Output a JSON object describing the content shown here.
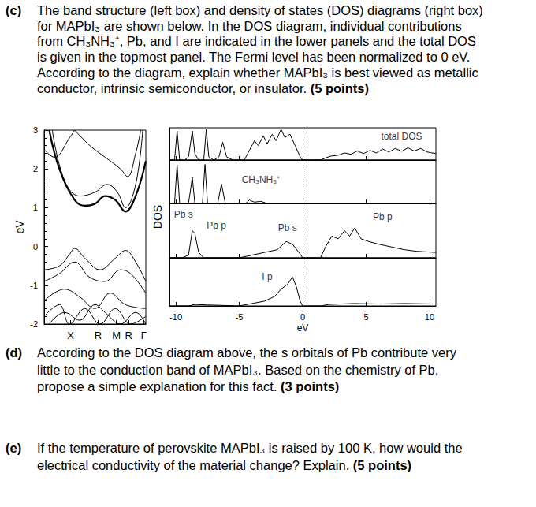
{
  "document": {
    "questions": [
      {
        "label": "(c)",
        "lines": [
          "The band structure (left box) and density of states (DOS) diagrams (right box)",
          "for MAPbI₃ are shown below. In the DOS diagram, individual contributions",
          "from CH₃NH₃⁺, Pb, and I are indicated in the lower panels and the total DOS",
          "is given in the topmost panel. The Fermi level has been normalized to 0 eV.",
          "According to the diagram, explain whether MAPbI₃ is best viewed as metallic",
          "conductor, intrinsic semiconductor, or insulator."
        ],
        "points": "(5 points)"
      },
      {
        "label": "(d)",
        "lines": [
          "According to the DOS diagram above, the s orbitals of Pb contribute very",
          "little to the conduction band of MAPbI₃. Based on the chemistry of Pb,",
          "propose a simple explanation for this fact."
        ],
        "points": "(3 points)"
      },
      {
        "label": "(e)",
        "lines": [
          "If the temperature of perovskite MAPbI₃ is raised by 100 K, how would the",
          "electrical conductivity of the material change? Explain."
        ],
        "points": "(5 points)"
      }
    ]
  },
  "chart_data": [
    {
      "type": "line",
      "ylabel": "eV",
      "grid": false,
      "xlim": [
        0,
        1
      ],
      "xticks": [
        {
          "value": 0.26,
          "label": "X"
        },
        {
          "value": 0.53,
          "label": "R"
        },
        {
          "value": 0.71,
          "label": "M"
        },
        {
          "value": 0.83,
          "label": "R"
        },
        {
          "value": 0.98,
          "label": "Γ"
        }
      ],
      "ylim": [
        -2,
        3
      ],
      "yticks": [
        -2,
        -1,
        0,
        1,
        2,
        3
      ],
      "series": [
        {
          "color": "#000000",
          "line_style": "bold",
          "values": [
            [
              0.05,
              3
            ],
            [
              0.15,
              2.0
            ],
            [
              0.3,
              1.2
            ],
            [
              0.4,
              1.05
            ],
            [
              0.5,
              1.1
            ],
            [
              0.6,
              1.3
            ],
            [
              0.7,
              1.2
            ],
            [
              0.8,
              0.9
            ],
            [
              0.9,
              1.3
            ],
            [
              1.0,
              2.2
            ]
          ]
        },
        {
          "color": "#000000",
          "line_style": "solid",
          "values": [
            [
              0.08,
              3
            ],
            [
              0.2,
              1.7
            ],
            [
              0.35,
              1.3
            ],
            [
              0.5,
              1.4
            ],
            [
              0.62,
              1.6
            ],
            [
              0.72,
              1.4
            ],
            [
              0.8,
              1.0
            ],
            [
              0.9,
              1.6
            ],
            [
              0.97,
              3
            ]
          ]
        },
        {
          "color": "#000000",
          "line_style": "solid",
          "values": [
            [
              0.3,
              3
            ],
            [
              0.45,
              2.6
            ],
            [
              0.6,
              2.3
            ],
            [
              0.75,
              2.0
            ],
            [
              0.82,
              1.8
            ],
            [
              0.9,
              2.4
            ],
            [
              0.95,
              3
            ]
          ]
        },
        {
          "color": "#000000",
          "line_style": "solid",
          "values": [
            [
              0.0,
              2.5
            ],
            [
              0.1,
              2.3
            ],
            [
              0.25,
              2.8
            ],
            [
              0.3,
              3
            ]
          ]
        },
        {
          "color": "#000000",
          "line_style": "solid",
          "values": [
            [
              0,
              -0.6
            ],
            [
              0.15,
              -0.5
            ],
            [
              0.25,
              -0.2
            ],
            [
              0.3,
              -0.05
            ],
            [
              0.4,
              -0.3
            ],
            [
              0.55,
              -0.6
            ],
            [
              0.7,
              -0.3
            ],
            [
              0.8,
              -0.1
            ],
            [
              0.9,
              -0.4
            ],
            [
              1,
              -0.9
            ]
          ]
        },
        {
          "color": "#000000",
          "line_style": "solid",
          "values": [
            [
              0,
              -0.9
            ],
            [
              0.15,
              -0.7
            ],
            [
              0.3,
              -0.4
            ],
            [
              0.45,
              -0.8
            ],
            [
              0.6,
              -0.9
            ],
            [
              0.75,
              -0.6
            ],
            [
              0.85,
              -0.7
            ],
            [
              1,
              -1.2
            ]
          ]
        },
        {
          "color": "#000000",
          "line_style": "solid",
          "values": [
            [
              0,
              -1.4
            ],
            [
              0.2,
              -1.1
            ],
            [
              0.35,
              -1.3
            ],
            [
              0.5,
              -1.6
            ],
            [
              0.65,
              -1.2
            ],
            [
              0.8,
              -1.5
            ],
            [
              1,
              -1.6
            ]
          ]
        },
        {
          "color": "#000000",
          "line_style": "solid",
          "values": [
            [
              0,
              -1.8
            ],
            [
              0.15,
              -1.5
            ],
            [
              0.25,
              -2
            ],
            [
              0.4,
              -1.6
            ],
            [
              0.55,
              -2
            ],
            [
              0.7,
              -1.6
            ],
            [
              0.85,
              -2
            ],
            [
              1,
              -1.8
            ]
          ]
        },
        {
          "color": "#000000",
          "line_style": "solid",
          "values": [
            [
              0.05,
              -2
            ],
            [
              0.2,
              -1.7
            ],
            [
              0.35,
              -1.9
            ],
            [
              0.5,
              -1.5
            ],
            [
              0.6,
              -1.7
            ],
            [
              0.75,
              -2
            ],
            [
              0.9,
              -1.7
            ],
            [
              1,
              -2
            ]
          ]
        }
      ]
    },
    {
      "type": "line",
      "xlabel": "eV",
      "ylabel": "DOS",
      "grid": false,
      "tick_labels": "x",
      "xlim": [
        -10.5,
        10.5
      ],
      "xticks": [
        -10,
        -5,
        0,
        5,
        10
      ],
      "fermi_level": 0,
      "panels": [
        {
          "ylim": [
            0,
            1
          ],
          "series": [
            {
              "color": "#000000",
              "values": [
                [
                  -10.5,
                  0
                ],
                [
                  -10.1,
                  0
                ],
                [
                  -9.9,
                  0.9
                ],
                [
                  -9.7,
                  0
                ],
                [
                  -9.3,
                  0
                ],
                [
                  -9.0,
                  0.1
                ],
                [
                  -8.7,
                  0.9
                ],
                [
                  -8.5,
                  0.2
                ],
                [
                  -8.2,
                  0
                ],
                [
                  -7.8,
                  0
                ],
                [
                  -7.6,
                  0.95
                ],
                [
                  -7.4,
                  0.1
                ],
                [
                  -7.0,
                  0
                ],
                [
                  -6.6,
                  0.1
                ],
                [
                  -6.3,
                  0.55
                ],
                [
                  -6.0,
                  0.1
                ],
                [
                  -5.5,
                  0
                ],
                [
                  -4.6,
                  0
                ],
                [
                  -4.2,
                  0.3
                ],
                [
                  -3.8,
                  0.6
                ],
                [
                  -3.5,
                  0.45
                ],
                [
                  -3.1,
                  0.75
                ],
                [
                  -2.8,
                  0.5
                ],
                [
                  -2.4,
                  0.8
                ],
                [
                  -2.1,
                  0.6
                ],
                [
                  -1.7,
                  0.95
                ],
                [
                  -1.4,
                  0.7
                ],
                [
                  -1.0,
                  0.8
                ],
                [
                  -0.6,
                  0.45
                ],
                [
                  -0.2,
                  0.1
                ],
                [
                  0,
                  0
                ],
                [
                  1.4,
                  0
                ],
                [
                  1.7,
                  0.05
                ],
                [
                  2.2,
                  0.12
                ],
                [
                  2.8,
                  0.15
                ],
                [
                  3.3,
                  0.22
                ],
                [
                  3.8,
                  0.18
                ],
                [
                  4.3,
                  0.28
                ],
                [
                  4.8,
                  0.2
                ],
                [
                  5.3,
                  0.3
                ],
                [
                  5.8,
                  0.22
                ],
                [
                  6.3,
                  0.34
                ],
                [
                  6.8,
                  0.25
                ],
                [
                  7.3,
                  0.36
                ],
                [
                  7.8,
                  0.27
                ],
                [
                  8.3,
                  0.38
                ],
                [
                  8.8,
                  0.28
                ],
                [
                  9.3,
                  0.36
                ],
                [
                  9.8,
                  0.25
                ],
                [
                  10.5,
                  0.2
                ]
              ]
            }
          ],
          "annotations": [
            {
              "text": "total DOS",
              "x": 7.8,
              "y": 0.72
            }
          ]
        },
        {
          "ylim": [
            0,
            1
          ],
          "series": [
            {
              "color": "#000000",
              "values": [
                [
                  -10.5,
                  0
                ],
                [
                  -10.1,
                  0
                ],
                [
                  -9.9,
                  0.9
                ],
                [
                  -9.7,
                  0
                ],
                [
                  -9.0,
                  0
                ],
                [
                  -8.7,
                  0.6
                ],
                [
                  -8.5,
                  0
                ],
                [
                  -7.9,
                  0
                ],
                [
                  -7.7,
                  0.9
                ],
                [
                  -7.5,
                  0
                ],
                [
                  -6.7,
                  0
                ],
                [
                  -6.4,
                  0.45
                ],
                [
                  -6.1,
                  0
                ],
                [
                  -4.5,
                  0
                ],
                [
                  -4.2,
                  0.08
                ],
                [
                  -3.8,
                  0.03
                ],
                [
                  -3.3,
                  0.05
                ],
                [
                  -2.8,
                  0
                ],
                [
                  10.5,
                  0
                ]
              ]
            }
          ],
          "annotations": [
            {
              "text": "CH₃NH₃⁺",
              "x": -3.3,
              "y": 0.55
            }
          ]
        },
        {
          "ylim": [
            0,
            1
          ],
          "series": [
            {
              "color": "#000000",
              "values": [
                [
                  -10.5,
                  0
                ],
                [
                  -9.5,
                  0
                ],
                [
                  -9.0,
                  0.05
                ],
                [
                  -8.7,
                  0.5
                ],
                [
                  -8.5,
                  0.45
                ],
                [
                  -8.2,
                  0.1
                ],
                [
                  -7.8,
                  0
                ],
                [
                  -5.0,
                  0
                ],
                [
                  -4.0,
                  0.05
                ],
                [
                  -3.0,
                  0.1
                ],
                [
                  -2.0,
                  0.15
                ],
                [
                  -1.3,
                  0.3
                ],
                [
                  -0.8,
                  0.25
                ],
                [
                  -0.3,
                  0.1
                ],
                [
                  0,
                  0
                ],
                [
                  1.4,
                  0
                ],
                [
                  1.8,
                  0.2
                ],
                [
                  2.3,
                  0.4
                ],
                [
                  2.8,
                  0.35
                ],
                [
                  3.3,
                  0.5
                ],
                [
                  3.7,
                  0.4
                ],
                [
                  4.1,
                  0.55
                ],
                [
                  4.6,
                  0.35
                ],
                [
                  5.2,
                  0.3
                ],
                [
                  6,
                  0.25
                ],
                [
                  7,
                  0.2
                ],
                [
                  8,
                  0.15
                ],
                [
                  9,
                  0.12
                ],
                [
                  10.5,
                  0.1
                ]
              ]
            }
          ],
          "annotations": [
            {
              "text": "Pb s",
              "x": -9.4,
              "y": 0.8
            },
            {
              "text": "Pb p",
              "x": -6.8,
              "y": 0.6
            },
            {
              "text": "Pb s",
              "x": -1.2,
              "y": 0.55
            },
            {
              "text": "Pb p",
              "x": 6.3,
              "y": 0.75
            }
          ]
        },
        {
          "ylim": [
            0,
            1
          ],
          "series": [
            {
              "color": "#000000",
              "values": [
                [
                  -10.5,
                  0
                ],
                [
                  -9,
                  0
                ],
                [
                  -8.5,
                  0.03
                ],
                [
                  -7.5,
                  0.02
                ],
                [
                  -5,
                  0
                ],
                [
                  -4,
                  0.05
                ],
                [
                  -3,
                  0.1
                ],
                [
                  -2.2,
                  0.2
                ],
                [
                  -1.7,
                  0.35
                ],
                [
                  -1.2,
                  0.45
                ],
                [
                  -0.8,
                  0.6
                ],
                [
                  -0.5,
                  0.4
                ],
                [
                  -0.2,
                  0.1
                ],
                [
                  0,
                  0
                ],
                [
                  1.5,
                  0
                ],
                [
                  2,
                  0.03
                ],
                [
                  4,
                  0.05
                ],
                [
                  6,
                  0.04
                ],
                [
                  8,
                  0.05
                ],
                [
                  10.5,
                  0.04
                ]
              ]
            }
          ],
          "annotations": [
            {
              "text": "I p",
              "x": -2.8,
              "y": 0.6
            }
          ]
        }
      ]
    }
  ]
}
